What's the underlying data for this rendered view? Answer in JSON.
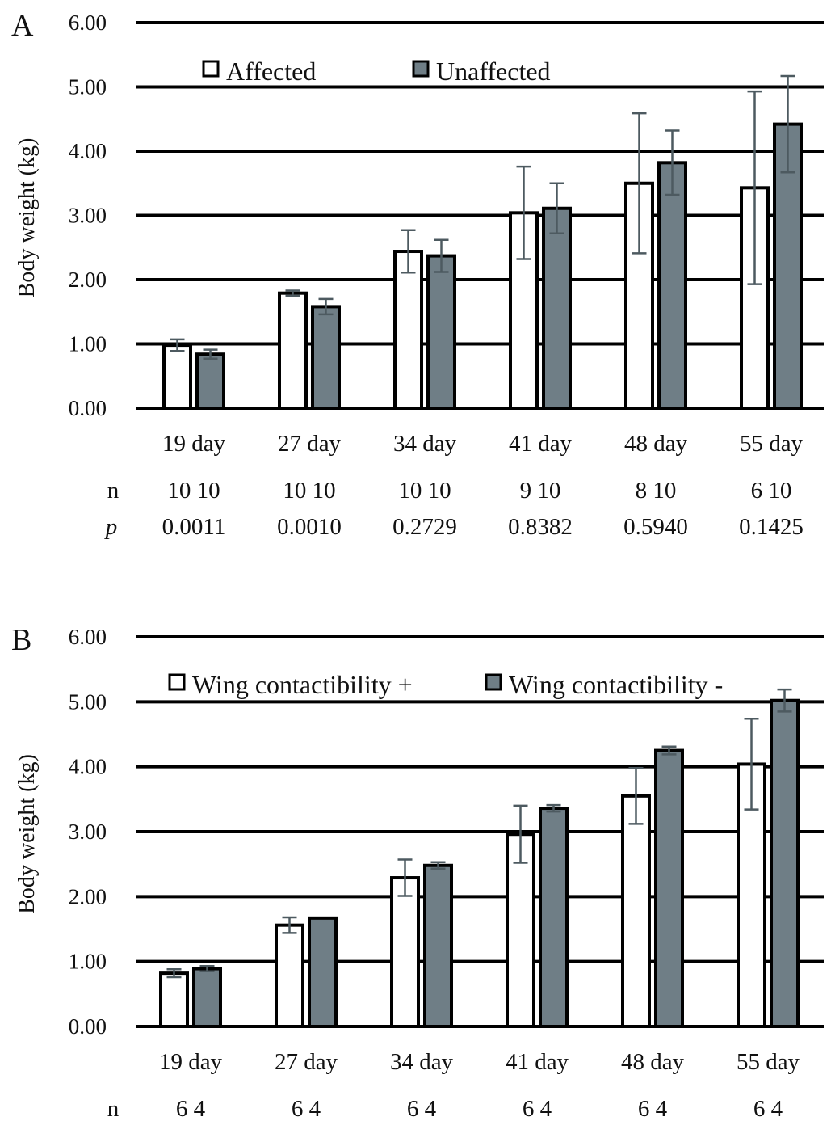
{
  "colors": {
    "affected": "#ffffff",
    "unaffected": "#6f7e86",
    "error_bar": "#4d5a60",
    "grid": "#000000"
  },
  "chart_data": [
    {
      "panel_label": "A",
      "type": "bar",
      "ylabel": "Body weight  (kg)",
      "ylim": [
        0,
        6
      ],
      "yticks": [
        "0.00",
        "1.00",
        "2.00",
        "3.00",
        "4.00",
        "5.00",
        "6.00"
      ],
      "grid": true,
      "legend_position": "top",
      "categories": [
        "19 day",
        "27 day",
        "34 day",
        "41 day",
        "48 day",
        "55 day"
      ],
      "series": [
        {
          "name": "Affected",
          "color": "#ffffff",
          "values": [
            0.98,
            1.79,
            2.44,
            3.04,
            3.5,
            3.43
          ],
          "errors": [
            0.09,
            0.04,
            0.33,
            0.72,
            1.09,
            1.5
          ]
        },
        {
          "name": "Unaffected",
          "color": "#6f7e86",
          "values": [
            0.84,
            1.58,
            2.37,
            3.11,
            3.82,
            4.42
          ],
          "errors": [
            0.07,
            0.12,
            0.25,
            0.39,
            0.5,
            0.75
          ]
        }
      ],
      "n_label": "n",
      "n": [
        "10 10",
        "10 10",
        "10 10",
        "9   10",
        "8   10",
        "6   10"
      ],
      "p_label": "p",
      "p": [
        "0.0011",
        "0.0010",
        "0.2729",
        "0.8382",
        "0.5940",
        "0.1425"
      ]
    },
    {
      "panel_label": "B",
      "type": "bar",
      "ylabel": "Body weight  (kg)",
      "ylim": [
        0,
        6
      ],
      "yticks": [
        "0.00",
        "1.00",
        "2.00",
        "3.00",
        "4.00",
        "5.00",
        "6.00"
      ],
      "grid": true,
      "legend_position": "top",
      "categories": [
        "19 day",
        "27 day",
        "34 day",
        "41 day",
        "48 day",
        "55 day"
      ],
      "series": [
        {
          "name": "Wing contactibility +",
          "color": "#ffffff",
          "values": [
            0.82,
            1.56,
            2.29,
            2.96,
            3.55,
            4.04
          ],
          "errors": [
            0.06,
            0.12,
            0.28,
            0.44,
            0.43,
            0.7
          ]
        },
        {
          "name": "Wing contactibility -",
          "color": "#6f7e86",
          "values": [
            0.89,
            1.67,
            2.48,
            3.36,
            4.25,
            5.02
          ],
          "errors": [
            0.04,
            0.0,
            0.05,
            0.05,
            0.06,
            0.17
          ]
        }
      ],
      "n_label": "n",
      "n": [
        "6  4",
        "6  4",
        "6  4",
        "6  4",
        "6  4",
        "6  4"
      ]
    }
  ]
}
